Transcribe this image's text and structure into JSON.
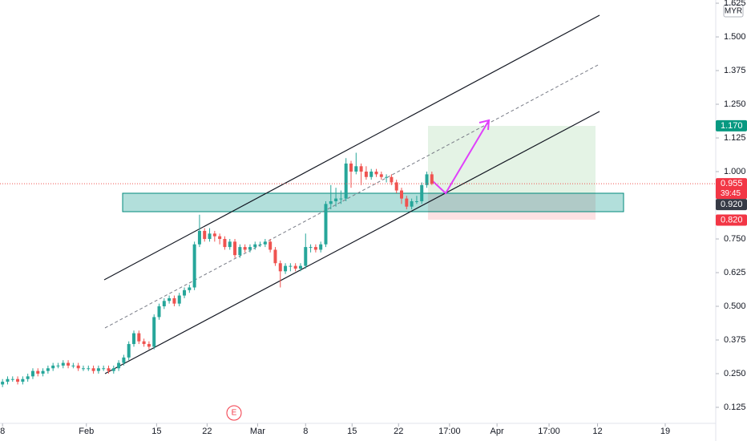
{
  "chart_data": {
    "type": "candlestick",
    "x": [
      0.5,
      1.5,
      2.5,
      3.5,
      4.5,
      5.5,
      6.5,
      7.5,
      8.5,
      9.5,
      10.5,
      11.5,
      12.5,
      13.5,
      14.5,
      15.5,
      16.5,
      17.5,
      18.5,
      19.5,
      20.5,
      21.5,
      22.5,
      23.5,
      24.5,
      25.5,
      26.5,
      27.5,
      28.5,
      29.5,
      30.5,
      31.5,
      32.5,
      33.5,
      34.5,
      35.5,
      36.5,
      37.5,
      38.5,
      39.5,
      40.5,
      41.5,
      42.5,
      43.5,
      44.5,
      45.5,
      46.5,
      47.5,
      48.5,
      49.5,
      50.5,
      51.5,
      52.5,
      53.5,
      54.5,
      55.5,
      56.5,
      57.5,
      58.5,
      59.5,
      60.5,
      61.5,
      62.5,
      63.5,
      64.5,
      65.5,
      66.5,
      67.5,
      68.5,
      69.5,
      70.5,
      71.5,
      72.5,
      73.5,
      74.5,
      75.5,
      76.5,
      77.5,
      78.5,
      79.5,
      80.5,
      81.5,
      82.5,
      83.5,
      84.5,
      85.5
    ],
    "open": [
      0.21,
      0.22,
      0.23,
      0.23,
      0.22,
      0.23,
      0.24,
      0.26,
      0.25,
      0.26,
      0.27,
      0.28,
      0.28,
      0.29,
      0.28,
      0.28,
      0.27,
      0.27,
      0.27,
      0.26,
      0.27,
      0.27,
      0.26,
      0.27,
      0.29,
      0.31,
      0.36,
      0.4,
      0.37,
      0.36,
      0.35,
      0.46,
      0.5,
      0.52,
      0.53,
      0.51,
      0.54,
      0.56,
      0.57,
      0.73,
      0.78,
      0.75,
      0.77,
      0.76,
      0.75,
      0.72,
      0.74,
      0.69,
      0.72,
      0.71,
      0.72,
      0.73,
      0.73,
      0.74,
      0.71,
      0.66,
      0.63,
      0.65,
      0.65,
      0.64,
      0.65,
      0.72,
      0.72,
      0.71,
      0.73,
      0.88,
      0.89,
      0.9,
      0.9,
      1.03,
      1.0,
      1.02,
      1.0,
      0.98,
      1.0,
      0.99,
      0.98,
      0.98,
      0.96,
      0.93,
      0.9,
      0.87,
      0.89,
      0.89,
      0.95,
      0.99
    ],
    "high": [
      0.23,
      0.24,
      0.24,
      0.24,
      0.24,
      0.25,
      0.27,
      0.27,
      0.27,
      0.28,
      0.29,
      0.29,
      0.3,
      0.3,
      0.29,
      0.29,
      0.28,
      0.28,
      0.28,
      0.28,
      0.28,
      0.28,
      0.28,
      0.3,
      0.32,
      0.37,
      0.41,
      0.41,
      0.38,
      0.37,
      0.47,
      0.51,
      0.53,
      0.54,
      0.54,
      0.55,
      0.57,
      0.58,
      0.74,
      0.84,
      0.79,
      0.79,
      0.78,
      0.77,
      0.76,
      0.75,
      0.75,
      0.73,
      0.73,
      0.73,
      0.74,
      0.74,
      0.75,
      0.75,
      0.72,
      0.67,
      0.66,
      0.66,
      0.66,
      0.66,
      0.77,
      0.73,
      0.73,
      0.74,
      0.89,
      0.95,
      0.94,
      0.93,
      1.05,
      1.04,
      1.07,
      1.03,
      1.02,
      1.01,
      1.01,
      1.0,
      0.99,
      0.99,
      0.97,
      0.94,
      0.91,
      0.9,
      0.91,
      0.96,
      1.0,
      1.0
    ],
    "low": [
      0.2,
      0.21,
      0.22,
      0.21,
      0.21,
      0.22,
      0.23,
      0.24,
      0.24,
      0.25,
      0.26,
      0.27,
      0.27,
      0.27,
      0.27,
      0.26,
      0.26,
      0.26,
      0.25,
      0.25,
      0.26,
      0.25,
      0.25,
      0.26,
      0.28,
      0.3,
      0.35,
      0.36,
      0.35,
      0.34,
      0.34,
      0.45,
      0.49,
      0.51,
      0.5,
      0.5,
      0.53,
      0.55,
      0.56,
      0.72,
      0.74,
      0.74,
      0.74,
      0.73,
      0.71,
      0.71,
      0.68,
      0.68,
      0.7,
      0.7,
      0.71,
      0.72,
      0.72,
      0.7,
      0.65,
      0.57,
      0.62,
      0.63,
      0.63,
      0.63,
      0.64,
      0.7,
      0.7,
      0.7,
      0.72,
      0.86,
      0.87,
      0.88,
      0.89,
      0.94,
      0.99,
      0.95,
      0.97,
      0.97,
      0.98,
      0.97,
      0.96,
      0.95,
      0.92,
      0.88,
      0.86,
      0.86,
      0.88,
      0.88,
      0.94,
      0.95
    ],
    "close": [
      0.22,
      0.23,
      0.23,
      0.22,
      0.23,
      0.24,
      0.26,
      0.25,
      0.26,
      0.27,
      0.28,
      0.28,
      0.29,
      0.28,
      0.28,
      0.27,
      0.27,
      0.27,
      0.26,
      0.27,
      0.27,
      0.26,
      0.27,
      0.29,
      0.31,
      0.36,
      0.4,
      0.37,
      0.36,
      0.35,
      0.46,
      0.5,
      0.52,
      0.53,
      0.51,
      0.54,
      0.56,
      0.57,
      0.73,
      0.78,
      0.75,
      0.77,
      0.76,
      0.75,
      0.72,
      0.74,
      0.69,
      0.72,
      0.71,
      0.72,
      0.73,
      0.73,
      0.74,
      0.71,
      0.66,
      0.63,
      0.65,
      0.65,
      0.64,
      0.65,
      0.72,
      0.72,
      0.71,
      0.73,
      0.88,
      0.89,
      0.9,
      0.9,
      1.03,
      1.0,
      1.02,
      1.0,
      0.98,
      1.0,
      0.99,
      0.98,
      0.98,
      0.96,
      0.93,
      0.9,
      0.87,
      0.89,
      0.89,
      0.95,
      0.99,
      0.955
    ],
    "up_color": "#26a69a",
    "down_color": "#ef5350",
    "xlim": [
      0,
      141.7
    ],
    "xticks": [
      {
        "value": 0.5,
        "label": "8"
      },
      {
        "value": 17.1,
        "label": "Feb"
      },
      {
        "value": 31,
        "label": "15"
      },
      {
        "value": 41,
        "label": "22"
      },
      {
        "value": 51,
        "label": "Mar"
      },
      {
        "value": 60.5,
        "label": "8"
      },
      {
        "value": 69.7,
        "label": "15"
      },
      {
        "value": 78.9,
        "label": "22"
      },
      {
        "value": 89,
        "label": "17:00"
      },
      {
        "value": 98.4,
        "label": "Apr"
      },
      {
        "value": 108.7,
        "label": "17:00"
      },
      {
        "value": 118.3,
        "label": "12"
      },
      {
        "value": 131.7,
        "label": "19"
      }
    ],
    "ylim": [
      0.0655,
      1.637
    ],
    "yticks": [
      0.125,
      {
        "value": 0.25,
        "label": "0.250"
      },
      {
        "value": 0.375,
        "label": "0.375"
      },
      {
        "value": 0.5,
        "label": "0.500"
      },
      0.625,
      {
        "value": 0.75,
        "label": "0.750"
      },
      {
        "value": 1,
        "label": "1.000"
      },
      1.125,
      {
        "value": 1.25,
        "label": "1.250"
      },
      1.375,
      {
        "value": 1.5,
        "label": "1.500"
      },
      1.625
    ],
    "currency": "MYR",
    "price_labels": [
      {
        "value": 1.17,
        "label": "1.170",
        "color": "#089981"
      },
      {
        "value": 0.955,
        "label": "0.955",
        "color": "#f23645"
      },
      {
        "value": 0.92,
        "label": "0.920",
        "color": "#363a45"
      },
      {
        "value": 0.82,
        "label": "0.820",
        "color": "#f23645"
      }
    ],
    "countdown": "39:45",
    "event_marker": "E"
  }
}
